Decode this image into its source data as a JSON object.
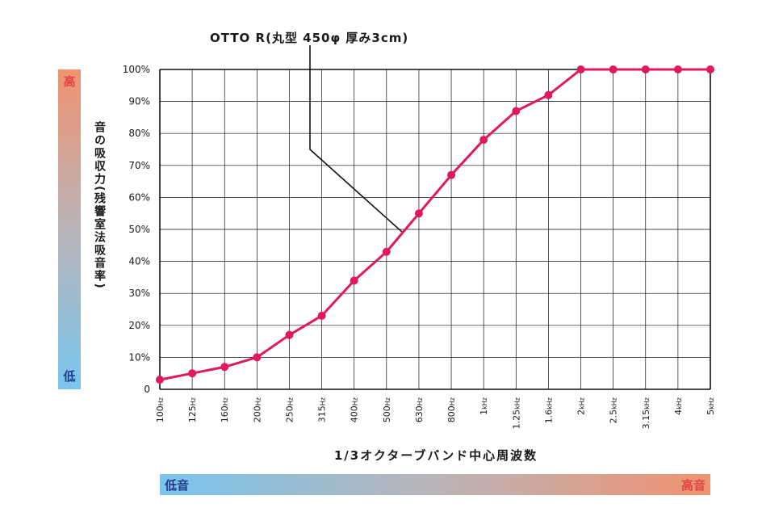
{
  "annotation": "OTTO R(丸型 450φ 厚み3cm)",
  "y_axis_label": "音の吸収力(残響室法吸音率)",
  "x_axis_label": "1/3オクターブバンド中心周波数",
  "scale_vertical": {
    "high": "高",
    "low": "低"
  },
  "scale_horizontal": {
    "low": "低音",
    "high": "高音"
  },
  "colors": {
    "series": "#e0195e",
    "gradient_warm": "#f09270",
    "gradient_cool": "#79c5ee",
    "grid": "#111111"
  },
  "chart_data": {
    "type": "line",
    "title": "",
    "xlabel": "1/3オクターブバンド中心周波数",
    "ylabel": "音の吸収力(残響室法吸音率)",
    "ylim": [
      0,
      100
    ],
    "grid": true,
    "y_ticks": [
      {
        "value": 0,
        "label": "0"
      },
      {
        "value": 10,
        "label": "10%"
      },
      {
        "value": 20,
        "label": "20%"
      },
      {
        "value": 30,
        "label": "30%"
      },
      {
        "value": 40,
        "label": "40%"
      },
      {
        "value": 50,
        "label": "50%"
      },
      {
        "value": 60,
        "label": "60%"
      },
      {
        "value": 70,
        "label": "70%"
      },
      {
        "value": 80,
        "label": "80%"
      },
      {
        "value": 90,
        "label": "90%"
      },
      {
        "value": 100,
        "label": "100%"
      }
    ],
    "categories": [
      {
        "num": "100",
        "unit": "Hz"
      },
      {
        "num": "125",
        "unit": "Hz"
      },
      {
        "num": "160",
        "unit": "Hz"
      },
      {
        "num": "200",
        "unit": "Hz"
      },
      {
        "num": "250",
        "unit": "Hz"
      },
      {
        "num": "315",
        "unit": "Hz"
      },
      {
        "num": "400",
        "unit": "Hz"
      },
      {
        "num": "500",
        "unit": "Hz"
      },
      {
        "num": "630",
        "unit": "Hz"
      },
      {
        "num": "800",
        "unit": "Hz"
      },
      {
        "num": "1",
        "unit": "kHz"
      },
      {
        "num": "1.25",
        "unit": "kHz"
      },
      {
        "num": "1.6",
        "unit": "kHz"
      },
      {
        "num": "2",
        "unit": "kHz"
      },
      {
        "num": "2.5",
        "unit": "kHz"
      },
      {
        "num": "3.15",
        "unit": "kHz"
      },
      {
        "num": "4",
        "unit": "kHz"
      },
      {
        "num": "5",
        "unit": "kHz"
      }
    ],
    "series": [
      {
        "name": "OTTO R(丸型 450φ 厚み3cm)",
        "values": [
          3,
          5,
          7,
          10,
          17,
          23,
          34,
          43,
          55,
          67,
          78,
          87,
          92,
          100,
          100,
          100,
          100,
          100
        ]
      }
    ],
    "annotation_target_index": 8
  }
}
